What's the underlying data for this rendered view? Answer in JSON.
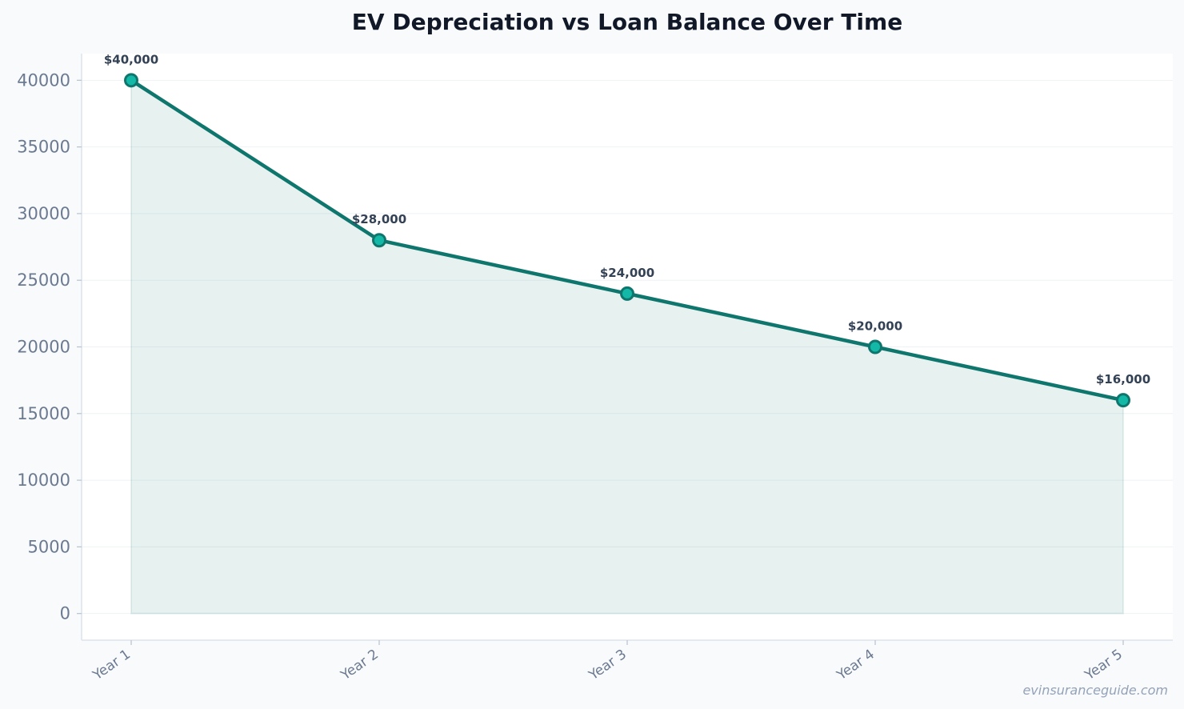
{
  "chart_data": {
    "type": "area",
    "title": "EV Depreciation vs Loan Balance Over Time",
    "xlabel": "",
    "ylabel": "",
    "categories": [
      "Year 1",
      "Year 2",
      "Year 3",
      "Year 4",
      "Year 5"
    ],
    "series": [
      {
        "values": [
          40000,
          28000,
          24000,
          20000,
          16000
        ],
        "data_labels": [
          "$40,000",
          "$28,000",
          "$24,000",
          "$20,000",
          "$16,000"
        ],
        "line_color": "#0f766e",
        "marker_color": "#14b8a6",
        "fill_color": "#0f766e"
      }
    ],
    "yticks": [
      0,
      5000,
      10000,
      15000,
      20000,
      25000,
      30000,
      35000,
      40000
    ],
    "ylim": [
      -2000,
      42000
    ],
    "grid": true,
    "legend": "none"
  },
  "watermark": "evinsuranceguide.com"
}
